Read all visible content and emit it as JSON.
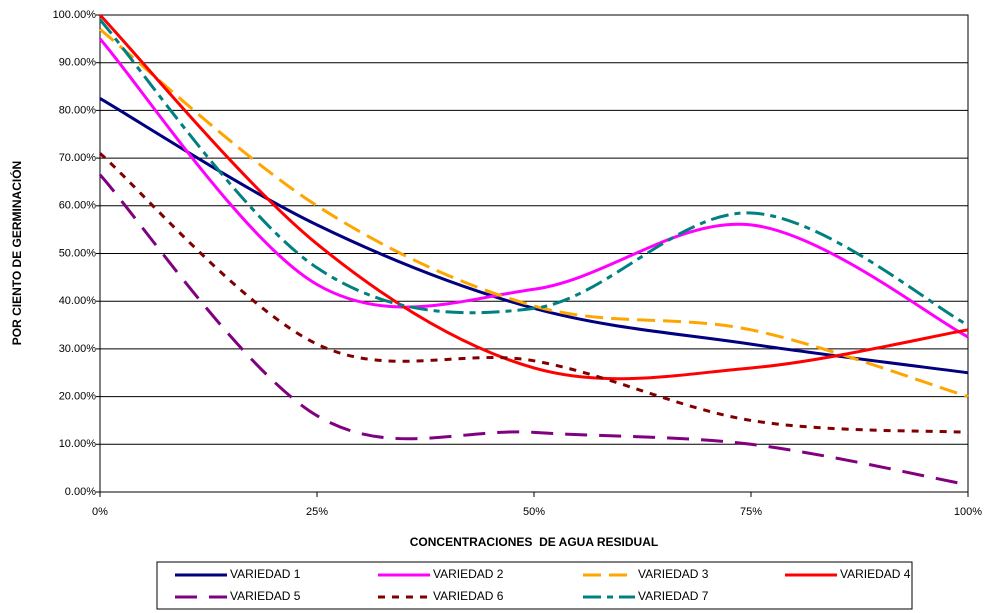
{
  "chart_data": {
    "type": "line",
    "xlabel": "CONCENTRACIONES  DE AGUA RESIDUAL",
    "ylabel": "POR CIENTO DE GERMINACIÓN",
    "x": [
      0,
      25,
      50,
      75,
      100
    ],
    "xlim": [
      0,
      100
    ],
    "xticks": [
      {
        "value": 0,
        "label": "0%"
      },
      {
        "value": 25,
        "label": "25%"
      },
      {
        "value": 50,
        "label": "50%"
      },
      {
        "value": 75,
        "label": "75%"
      },
      {
        "value": 100,
        "label": "100%"
      }
    ],
    "ylim": [
      0,
      100
    ],
    "yticks": [
      {
        "value": 0,
        "label": "0.00%"
      },
      {
        "value": 10,
        "label": "10.00%"
      },
      {
        "value": 20,
        "label": "20.00%"
      },
      {
        "value": 30,
        "label": "30.00%"
      },
      {
        "value": 40,
        "label": "40.00%"
      },
      {
        "value": 50,
        "label": "50.00%"
      },
      {
        "value": 60,
        "label": "60.00%"
      },
      {
        "value": 70,
        "label": "70.00%"
      },
      {
        "value": 80,
        "label": "80.00%"
      },
      {
        "value": 90,
        "label": "90.00%"
      },
      {
        "value": 100,
        "label": "100.00%"
      }
    ],
    "grid": true,
    "smooth": true,
    "legend": "bottom",
    "series": [
      {
        "name": "VARIEDAD 1",
        "color": "#000080",
        "dash": "solid",
        "values": [
          82.5,
          56,
          38.5,
          31,
          25
        ]
      },
      {
        "name": "VARIEDAD 2",
        "color": "#ff00ff",
        "dash": "solid",
        "values": [
          95,
          43.5,
          42.5,
          56,
          32.5
        ]
      },
      {
        "name": "VARIEDAD 3",
        "color": "#ffa500",
        "dash": "dash",
        "values": [
          97,
          60,
          39,
          34,
          20
        ]
      },
      {
        "name": "VARIEDAD 4",
        "color": "#ff0000",
        "dash": "solid",
        "values": [
          100,
          52,
          26,
          26,
          34
        ]
      },
      {
        "name": "VARIEDAD 5",
        "color": "#800080",
        "dash": "longdash",
        "values": [
          66.5,
          16,
          12.5,
          10,
          1.5
        ]
      },
      {
        "name": "VARIEDAD 6",
        "color": "#800000",
        "dash": "dot",
        "values": [
          71,
          31,
          27.5,
          15,
          12.5
        ]
      },
      {
        "name": "VARIEDAD 7",
        "color": "#008080",
        "dash": "dashdot",
        "values": [
          99,
          47,
          38.5,
          58.5,
          35
        ]
      }
    ]
  }
}
